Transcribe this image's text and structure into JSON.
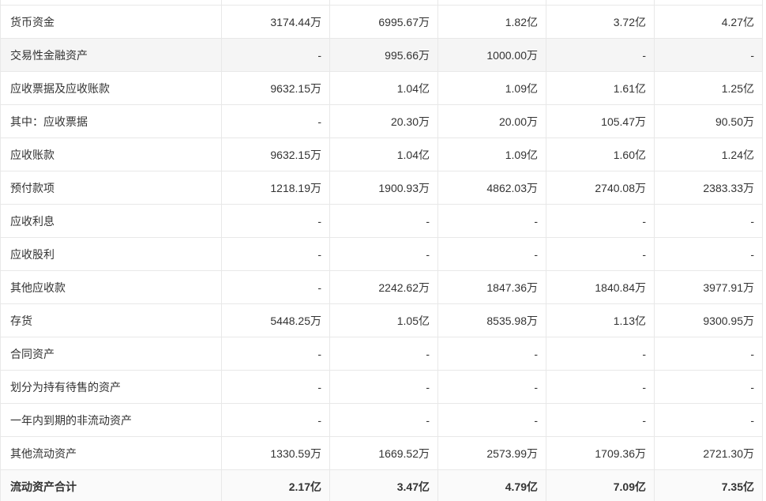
{
  "colors": {
    "border": "#e8e8e8",
    "highlight": "#f5f5f5",
    "total-bg": "#fafafa",
    "text": "#333333"
  },
  "table": {
    "rows": [
      {
        "label": "货币资金",
        "values": [
          "3174.44万",
          "6995.67万",
          "1.82亿",
          "3.72亿",
          "4.27亿"
        ]
      },
      {
        "label": "交易性金融资产",
        "values": [
          "-",
          "995.66万",
          "1000.00万",
          "-",
          "-"
        ],
        "highlight": true
      },
      {
        "label": "应收票据及应收账款",
        "values": [
          "9632.15万",
          "1.04亿",
          "1.09亿",
          "1.61亿",
          "1.25亿"
        ]
      },
      {
        "label": "其中：应收票据",
        "values": [
          "-",
          "20.30万",
          "20.00万",
          "105.47万",
          "90.50万"
        ]
      },
      {
        "label": "应收账款",
        "values": [
          "9632.15万",
          "1.04亿",
          "1.09亿",
          "1.60亿",
          "1.24亿"
        ]
      },
      {
        "label": "预付款项",
        "values": [
          "1218.19万",
          "1900.93万",
          "4862.03万",
          "2740.08万",
          "2383.33万"
        ]
      },
      {
        "label": "应收利息",
        "values": [
          "-",
          "-",
          "-",
          "-",
          "-"
        ]
      },
      {
        "label": "应收股利",
        "values": [
          "-",
          "-",
          "-",
          "-",
          "-"
        ]
      },
      {
        "label": "其他应收款",
        "values": [
          "-",
          "2242.62万",
          "1847.36万",
          "1840.84万",
          "3977.91万"
        ]
      },
      {
        "label": "存货",
        "values": [
          "5448.25万",
          "1.05亿",
          "8535.98万",
          "1.13亿",
          "9300.95万"
        ]
      },
      {
        "label": "合同资产",
        "values": [
          "-",
          "-",
          "-",
          "-",
          "-"
        ]
      },
      {
        "label": "划分为持有待售的资产",
        "values": [
          "-",
          "-",
          "-",
          "-",
          "-"
        ]
      },
      {
        "label": "一年内到期的非流动资产",
        "values": [
          "-",
          "-",
          "-",
          "-",
          "-"
        ]
      },
      {
        "label": "其他流动资产",
        "values": [
          "1330.59万",
          "1669.52万",
          "2573.99万",
          "1709.36万",
          "2721.30万"
        ]
      },
      {
        "label": "流动资产合计",
        "values": [
          "2.17亿",
          "3.47亿",
          "4.79亿",
          "7.09亿",
          "7.35亿"
        ],
        "total": true
      }
    ]
  }
}
